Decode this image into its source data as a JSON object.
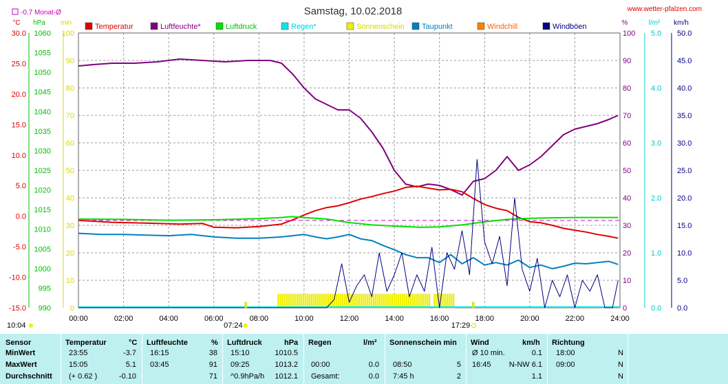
{
  "header": {
    "title": "Samstag, 10.02.2018",
    "website": "www.wetter-pfalzen.com",
    "monthly_avg": "-0.7 Monat-Ø"
  },
  "units": {
    "temp": "°C",
    "pressure": "hPa",
    "sun": "min",
    "humidity": "%",
    "rain": "l/m²",
    "wind": "km/h"
  },
  "legend": [
    {
      "label": "Temperatur",
      "color": "#e00000",
      "text_color": "#e00000"
    },
    {
      "label": "Luftfeuchte*",
      "color": "#800080",
      "text_color": "#800080"
    },
    {
      "label": "Luftdruck",
      "color": "#00e000",
      "text_color": "#00c000"
    },
    {
      "label": "Regen*",
      "color": "#00e8e8",
      "text_color": "#00d0d0"
    },
    {
      "label": "Sonnenschein",
      "color": "#f0f000",
      "text_color": "#d8d800"
    },
    {
      "label": "Taupunkt",
      "color": "#0080c0",
      "text_color": "#0080c0"
    },
    {
      "label": "Windchill",
      "color": "#ff8000",
      "text_color": "#ff6000"
    },
    {
      "label": "Windböen",
      "color": "#000080",
      "text_color": "#000080"
    }
  ],
  "chart_data": {
    "type": "line",
    "x_ticks": [
      "00:00",
      "02:00",
      "04:00",
      "06:00",
      "08:00",
      "10:00",
      "12:00",
      "14:00",
      "16:00",
      "18:00",
      "20:00",
      "22:00",
      "24:00"
    ],
    "xlim": [
      "00:00",
      "24:00"
    ],
    "axes": {
      "temperature": {
        "ylim": [
          -15,
          30
        ],
        "ticks": [
          "30.0",
          "25.0",
          "20.0",
          "15.0",
          "10.0",
          "5.0",
          "0.0",
          "-5.0",
          "-10.0",
          "-15.0"
        ]
      },
      "pressure": {
        "ylim": [
          990,
          1060
        ],
        "ticks": [
          "1060",
          "1055",
          "1050",
          "1045",
          "1040",
          "1035",
          "1030",
          "1025",
          "1020",
          "1015",
          "1010",
          "1005",
          "1000",
          "995",
          "990"
        ]
      },
      "sunshine": {
        "ylim": [
          0,
          100
        ],
        "ticks": [
          "100",
          "90",
          "80",
          "70",
          "60",
          "50",
          "40",
          "30",
          "20",
          "10",
          "0"
        ]
      },
      "humidity": {
        "ylim": [
          0,
          100
        ],
        "ticks": [
          "100",
          "90",
          "80",
          "70",
          "60",
          "50",
          "40",
          "30",
          "20",
          "10",
          "0"
        ]
      },
      "rain": {
        "ylim": [
          0,
          5
        ],
        "ticks": [
          "5.0",
          "4.0",
          "3.0",
          "2.0",
          "1.0",
          "0.0"
        ]
      },
      "wind": {
        "ylim": [
          0,
          50
        ],
        "ticks": [
          "50.0",
          "45.0",
          "40.0",
          "35.0",
          "30.0",
          "25.0",
          "20.0",
          "15.0",
          "10.0",
          "5.0",
          "0.0"
        ]
      }
    },
    "grid": true,
    "monthly_avg_temperature": -0.7,
    "sunrise": "07:24",
    "sunset": "17:29",
    "daylight": "10:04",
    "series": [
      {
        "name": "Luftfeuchte*",
        "axis": "humidity",
        "x": [
          "00:00",
          "00:40",
          "01:30",
          "02:30",
          "03:30",
          "04:30",
          "05:30",
          "06:30",
          "07:30",
          "08:30",
          "09:00",
          "09:30",
          "10:00",
          "10:30",
          "11:00",
          "11:30",
          "12:00",
          "12:30",
          "13:00",
          "13:30",
          "14:00",
          "14:30",
          "15:00",
          "15:30",
          "16:00",
          "16:30",
          "17:00",
          "17:30",
          "18:00",
          "18:30",
          "19:00",
          "19:30",
          "20:00",
          "20:30",
          "21:00",
          "21:30",
          "22:00",
          "22:30",
          "23:00",
          "23:30",
          "23:55"
        ],
        "values": [
          88,
          88.5,
          89,
          89,
          89.5,
          90.5,
          90,
          89.5,
          90,
          90,
          89,
          85,
          80,
          76,
          74,
          72,
          72,
          69,
          64,
          58,
          50,
          45,
          44,
          45,
          44.5,
          43,
          41,
          46,
          47,
          50,
          55,
          50,
          52,
          55,
          59,
          63,
          65,
          66,
          67,
          68.5,
          70
        ]
      },
      {
        "name": "Temperatur",
        "axis": "temperature",
        "x": [
          "00:00",
          "00:30",
          "01:30",
          "02:30",
          "03:30",
          "04:30",
          "05:30",
          "06:00",
          "07:00",
          "08:00",
          "09:00",
          "09:30",
          "10:00",
          "10:30",
          "11:00",
          "11:30",
          "12:00",
          "12:30",
          "13:00",
          "13:30",
          "14:00",
          "14:30",
          "15:00",
          "15:30",
          "16:00",
          "16:30",
          "17:00",
          "17:30",
          "18:00",
          "18:30",
          "19:00",
          "19:30",
          "20:00",
          "20:30",
          "21:00",
          "21:30",
          "22:00",
          "22:30",
          "23:00",
          "23:30",
          "23:55"
        ],
        "values": [
          -0.7,
          -0.8,
          -1.0,
          -1.1,
          -1.2,
          -1.3,
          -1.2,
          -1.8,
          -1.9,
          -1.7,
          -1.3,
          -0.6,
          0.2,
          0.9,
          1.4,
          1.7,
          2.2,
          2.8,
          3.2,
          3.7,
          4.1,
          4.7,
          4.9,
          4.6,
          4.3,
          4.4,
          4.0,
          2.9,
          1.9,
          1.3,
          0.9,
          -0.2,
          -0.9,
          -1.1,
          -1.5,
          -2.0,
          -2.3,
          -2.6,
          -3.0,
          -3.3,
          -3.6
        ]
      },
      {
        "name": "Luftdruck",
        "axis": "pressure",
        "x": [
          "00:00",
          "02:00",
          "04:00",
          "06:00",
          "08:00",
          "09:00",
          "09:25",
          "10:00",
          "11:00",
          "12:00",
          "13:00",
          "14:00",
          "15:10",
          "16:00",
          "17:00",
          "18:00",
          "19:00",
          "20:00",
          "21:00",
          "22:00",
          "23:00",
          "23:55"
        ],
        "values": [
          1012.6,
          1012.5,
          1012.3,
          1012.4,
          1012.7,
          1013.0,
          1013.2,
          1013.0,
          1012.6,
          1011.7,
          1011.1,
          1010.8,
          1010.5,
          1010.6,
          1011.1,
          1011.9,
          1012.5,
          1012.8,
          1012.9,
          1013.0,
          1013.0,
          1013.0
        ]
      },
      {
        "name": "Taupunkt",
        "axis": "temperature",
        "x": [
          "00:00",
          "01:00",
          "02:00",
          "03:00",
          "04:00",
          "05:00",
          "06:00",
          "07:00",
          "08:00",
          "09:00",
          "10:00",
          "10:30",
          "11:00",
          "11:30",
          "12:00",
          "12:30",
          "13:00",
          "13:30",
          "14:00",
          "14:30",
          "15:00",
          "15:30",
          "16:00",
          "16:30",
          "17:00",
          "17:30",
          "18:00",
          "18:30",
          "19:00",
          "19:30",
          "20:00",
          "20:30",
          "21:00",
          "21:30",
          "22:00",
          "22:30",
          "23:00",
          "23:30",
          "23:55"
        ],
        "values": [
          -2.8,
          -3.0,
          -3.0,
          -3.1,
          -3.2,
          -3.0,
          -3.4,
          -3.6,
          -3.6,
          -3.4,
          -3.0,
          -3.4,
          -3.7,
          -3.4,
          -3.0,
          -3.7,
          -4.0,
          -4.8,
          -5.5,
          -6.3,
          -6.8,
          -6.8,
          -7.6,
          -6.3,
          -7.8,
          -6.8,
          -8.0,
          -7.6,
          -8.0,
          -7.2,
          -8.4,
          -8.0,
          -8.6,
          -8.2,
          -7.7,
          -7.8,
          -7.6,
          -7.4,
          -7.9
        ]
      },
      {
        "name": "Windböen",
        "axis": "wind",
        "x": [
          "00:00",
          "11:00",
          "11:20",
          "11:40",
          "12:00",
          "12:20",
          "12:40",
          "13:00",
          "13:20",
          "13:40",
          "14:00",
          "14:20",
          "14:40",
          "15:00",
          "15:20",
          "15:40",
          "16:00",
          "16:20",
          "16:40",
          "17:00",
          "17:20",
          "17:40",
          "18:00",
          "18:20",
          "18:40",
          "19:00",
          "19:20",
          "19:40",
          "20:00",
          "20:20",
          "20:40",
          "21:00",
          "21:20",
          "21:40",
          "22:00",
          "22:20",
          "22:40",
          "23:00",
          "23:20",
          "23:40",
          "23:55"
        ],
        "values": [
          0,
          0,
          1.5,
          8,
          1,
          4,
          6,
          2,
          10,
          3,
          6,
          10,
          2,
          6,
          3,
          11,
          0,
          10,
          7,
          14,
          6,
          27,
          12,
          8,
          13,
          4,
          20,
          7,
          3,
          9,
          0,
          5,
          2,
          6,
          0,
          5,
          3,
          6,
          0,
          0,
          5
        ]
      }
    ],
    "sunshine_periods": [
      [
        "08:50",
        "15:35"
      ],
      [
        "15:45",
        "16:40"
      ]
    ]
  },
  "stats": {
    "headers": {
      "sensor": "Sensor",
      "temp": "Temperatur",
      "temp_unit": "°C",
      "hum": "Luftfeuchte",
      "hum_unit": "%",
      "press": "Luftdruck",
      "press_unit": "hPa",
      "rain": "Regen",
      "rain_unit": "l/m²",
      "sun": "Sonnenschein min",
      "wind": "Wind",
      "wind_unit": "km/h",
      "dir": "Richtung"
    },
    "rows": [
      {
        "label": "MinWert",
        "temp_time": "23:55",
        "temp_val": "-3.7",
        "hum_time": "16:15",
        "hum_val": "38",
        "press_time": "15:10",
        "press_val": "1010.5",
        "rain_time": "",
        "rain_val": "",
        "sun_time": "",
        "sun_val": "",
        "wind_time": "Ø 10 min.",
        "wind_val": "0.1",
        "dir_time": "18:00",
        "dir_val": "N"
      },
      {
        "label": "MaxWert",
        "temp_time": "15:05",
        "temp_val": "5.1",
        "hum_time": "03:45",
        "hum_val": "91",
        "press_time": "09:25",
        "press_val": "1013.2",
        "rain_time": "00:00",
        "rain_val": "0.0",
        "sun_time": "08:50",
        "sun_val": "5",
        "wind_time": "16:45",
        "wind_val": "N-NW 6.1",
        "dir_time": "09:00",
        "dir_val": "N"
      },
      {
        "label": "Durchschnitt",
        "temp_time": "(+ 0.62 )",
        "temp_val": "-0.10",
        "hum_time": "",
        "hum_val": "71",
        "press_time": "^0.9hPa/h",
        "press_val": "1012.1",
        "rain_time": "Gesamt:",
        "rain_val": "0.0",
        "sun_time": "7:45 h",
        "sun_val": "2",
        "wind_time": "",
        "wind_val": "1.1",
        "dir_time": "",
        "dir_val": "N"
      }
    ]
  }
}
